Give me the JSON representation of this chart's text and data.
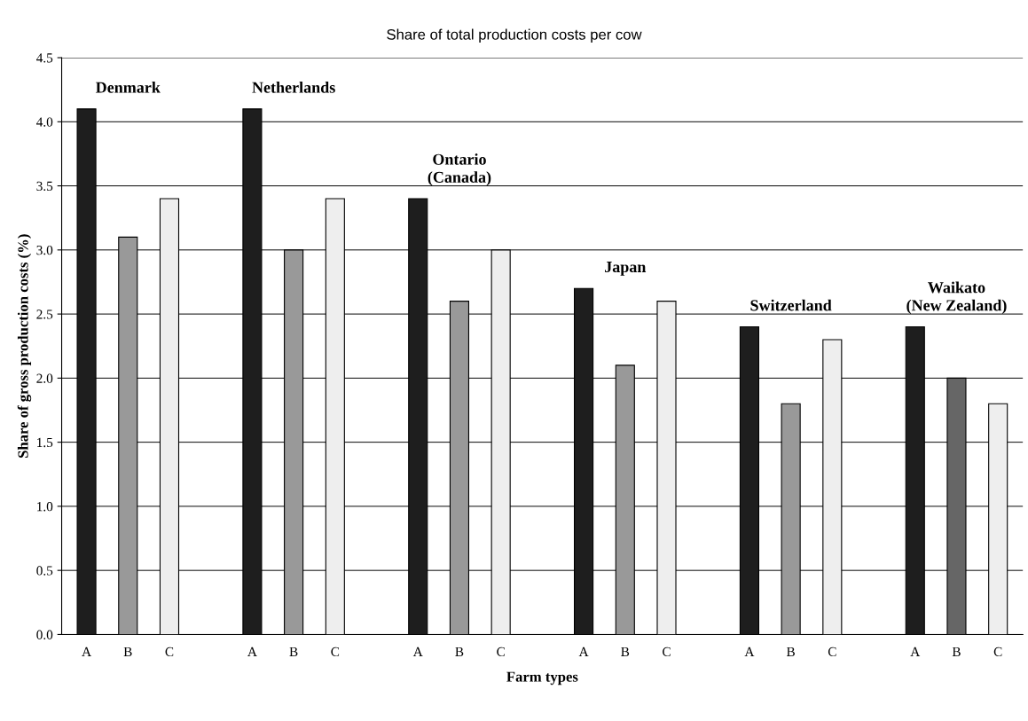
{
  "chart_data": {
    "type": "bar",
    "title": "Share of total production costs per cow",
    "xlabel": "Farm types",
    "ylabel": "Share of gross production costs (%)",
    "categories": [
      "A",
      "B",
      "C",
      null,
      "A",
      "B",
      "C",
      null,
      "A",
      "B",
      "C",
      null,
      "A",
      "B",
      "C",
      null,
      "A",
      "B",
      "C",
      null,
      "A",
      "B",
      "C"
    ],
    "values": [
      4.1,
      3.1,
      3.4,
      null,
      4.1,
      3.0,
      3.4,
      null,
      3.4,
      2.6,
      3.0,
      null,
      2.7,
      2.1,
      2.6,
      null,
      2.4,
      1.8,
      2.3,
      null,
      2.4,
      2.0,
      1.8
    ],
    "colors": [
      "#1e1e1e",
      "#999999",
      "#eeeeee",
      null,
      "#1e1e1e",
      "#999999",
      "#eeeeee",
      null,
      "#1e1e1e",
      "#999999",
      "#eeeeee",
      null,
      "#1e1e1e",
      "#999999",
      "#eeeeee",
      null,
      "#1e1e1e",
      "#999999",
      "#eeeeee",
      null,
      "#1e1e1e",
      "#666666",
      "#eeeeee"
    ],
    "annotations": [
      "Denmark",
      "Netherlands",
      "Ontario\n(Canada)",
      "Japan",
      "Switzerland",
      "Waikato\n(New Zealand)"
    ],
    "ylim": [
      0,
      4.5
    ],
    "yticks": [
      {
        "value": 0,
        "label": "0.0"
      },
      {
        "value": 0.5,
        "label": "0.5"
      },
      {
        "value": 1,
        "label": "1.0"
      },
      {
        "value": 1.5,
        "label": "1.5"
      },
      {
        "value": 2,
        "label": "2.0"
      },
      {
        "value": 2.5,
        "label": "2.5"
      },
      {
        "value": 3,
        "label": "3.0"
      },
      {
        "value": 3.5,
        "label": "3.5"
      },
      {
        "value": 4,
        "label": "4.0"
      },
      {
        "value": 4.5,
        "label": "4.5"
      }
    ],
    "grid": "y"
  }
}
